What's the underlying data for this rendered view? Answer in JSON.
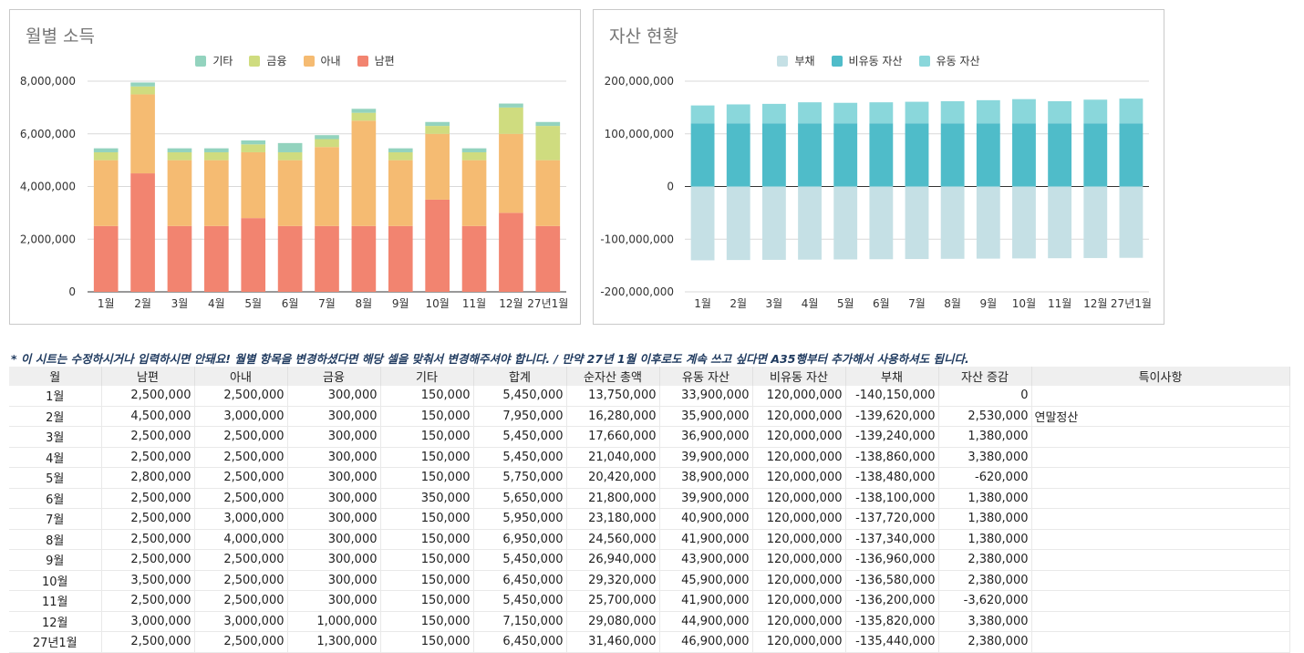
{
  "charts": {
    "income": {
      "title": "월별 소득"
    },
    "assets": {
      "title": "자산 현황"
    }
  },
  "chart_data": [
    {
      "type": "bar",
      "stacked": true,
      "title": "월별 소득",
      "categories": [
        "1월",
        "2월",
        "3월",
        "4월",
        "5월",
        "6월",
        "7월",
        "8월",
        "9월",
        "10월",
        "11월",
        "12월",
        "27년1월"
      ],
      "series": [
        {
          "name": "남편",
          "color": "#f28470",
          "values": [
            2500000,
            4500000,
            2500000,
            2500000,
            2800000,
            2500000,
            2500000,
            2500000,
            2500000,
            3500000,
            2500000,
            3000000,
            2500000
          ]
        },
        {
          "name": "아내",
          "color": "#f5bb72",
          "values": [
            2500000,
            3000000,
            2500000,
            2500000,
            2500000,
            2500000,
            3000000,
            4000000,
            2500000,
            2500000,
            2500000,
            3000000,
            2500000
          ]
        },
        {
          "name": "금융",
          "color": "#cfdc7f",
          "values": [
            300000,
            300000,
            300000,
            300000,
            300000,
            300000,
            300000,
            300000,
            300000,
            300000,
            300000,
            1000000,
            1300000
          ]
        },
        {
          "name": "기타",
          "color": "#93d3be",
          "values": [
            150000,
            150000,
            150000,
            150000,
            150000,
            350000,
            150000,
            150000,
            150000,
            150000,
            150000,
            150000,
            150000
          ]
        }
      ],
      "legend_order": [
        "기타",
        "금융",
        "아내",
        "남편"
      ],
      "yticks": [
        "8,000,000",
        "6,000,000",
        "4,000,000",
        "2,000,000",
        "0"
      ],
      "ylim": [
        0,
        8000000
      ],
      "legend_position": "top"
    },
    {
      "type": "bar",
      "stacked": true,
      "title": "자산 현황",
      "categories": [
        "1월",
        "2월",
        "3월",
        "4월",
        "5월",
        "6월",
        "7월",
        "8월",
        "9월",
        "10월",
        "11월",
        "12월",
        "27년1월"
      ],
      "series": [
        {
          "name": "부채",
          "color": "#c5e0e5",
          "values": [
            -140150000,
            -139620000,
            -139240000,
            -138860000,
            -138480000,
            -138100000,
            -137720000,
            -137340000,
            -136960000,
            -136580000,
            -136200000,
            -135820000,
            -135440000
          ]
        },
        {
          "name": "비유동 자산",
          "color": "#4fbcc9",
          "values": [
            120000000,
            120000000,
            120000000,
            120000000,
            120000000,
            120000000,
            120000000,
            120000000,
            120000000,
            120000000,
            120000000,
            120000000,
            120000000
          ]
        },
        {
          "name": "유동 자산",
          "color": "#8ad7db",
          "values": [
            33900000,
            35900000,
            36900000,
            39900000,
            38900000,
            39900000,
            40900000,
            41900000,
            43900000,
            45900000,
            41900000,
            44900000,
            46900000
          ]
        }
      ],
      "legend_order": [
        "부채",
        "비유동 자산",
        "유동 자산"
      ],
      "yticks": [
        "200,000,000",
        "100,000,000",
        "0",
        "-100,000,000",
        "-200,000,000"
      ],
      "ylim": [
        -200000000,
        200000000
      ],
      "legend_position": "top"
    }
  ],
  "sheet": {
    "note": "* 이 시트는 수정하시거나 입력하시면 안돼요! 월별 항목을 변경하셨다면 해당 셀을 맞춰서 변경해주셔야 합니다. / 만약 27년 1월 이후로도 계속 쓰고 싶다면 A35행부터 추가해서 사용하셔도 됩니다.",
    "headers": [
      "월",
      "남편",
      "아내",
      "금융",
      "기타",
      "합계",
      "순자산 총액",
      "유동 자산",
      "비유동 자산",
      "부채",
      "자산 증감",
      "특이사항"
    ],
    "rows": [
      [
        "1월",
        "2,500,000",
        "2,500,000",
        "300,000",
        "150,000",
        "5,450,000",
        "13,750,000",
        "33,900,000",
        "120,000,000",
        "-140,150,000",
        "0",
        ""
      ],
      [
        "2월",
        "4,500,000",
        "3,000,000",
        "300,000",
        "150,000",
        "7,950,000",
        "16,280,000",
        "35,900,000",
        "120,000,000",
        "-139,620,000",
        "2,530,000",
        "연말정산"
      ],
      [
        "3월",
        "2,500,000",
        "2,500,000",
        "300,000",
        "150,000",
        "5,450,000",
        "17,660,000",
        "36,900,000",
        "120,000,000",
        "-139,240,000",
        "1,380,000",
        ""
      ],
      [
        "4월",
        "2,500,000",
        "2,500,000",
        "300,000",
        "150,000",
        "5,450,000",
        "21,040,000",
        "39,900,000",
        "120,000,000",
        "-138,860,000",
        "3,380,000",
        ""
      ],
      [
        "5월",
        "2,800,000",
        "2,500,000",
        "300,000",
        "150,000",
        "5,750,000",
        "20,420,000",
        "38,900,000",
        "120,000,000",
        "-138,480,000",
        "-620,000",
        ""
      ],
      [
        "6월",
        "2,500,000",
        "2,500,000",
        "300,000",
        "350,000",
        "5,650,000",
        "21,800,000",
        "39,900,000",
        "120,000,000",
        "-138,100,000",
        "1,380,000",
        ""
      ],
      [
        "7월",
        "2,500,000",
        "3,000,000",
        "300,000",
        "150,000",
        "5,950,000",
        "23,180,000",
        "40,900,000",
        "120,000,000",
        "-137,720,000",
        "1,380,000",
        ""
      ],
      [
        "8월",
        "2,500,000",
        "4,000,000",
        "300,000",
        "150,000",
        "6,950,000",
        "24,560,000",
        "41,900,000",
        "120,000,000",
        "-137,340,000",
        "1,380,000",
        ""
      ],
      [
        "9월",
        "2,500,000",
        "2,500,000",
        "300,000",
        "150,000",
        "5,450,000",
        "26,940,000",
        "43,900,000",
        "120,000,000",
        "-136,960,000",
        "2,380,000",
        ""
      ],
      [
        "10월",
        "3,500,000",
        "2,500,000",
        "300,000",
        "150,000",
        "6,450,000",
        "29,320,000",
        "45,900,000",
        "120,000,000",
        "-136,580,000",
        "2,380,000",
        ""
      ],
      [
        "11월",
        "2,500,000",
        "2,500,000",
        "300,000",
        "150,000",
        "5,450,000",
        "25,700,000",
        "41,900,000",
        "120,000,000",
        "-136,200,000",
        "-3,620,000",
        ""
      ],
      [
        "12월",
        "3,000,000",
        "3,000,000",
        "1,000,000",
        "150,000",
        "7,150,000",
        "29,080,000",
        "44,900,000",
        "120,000,000",
        "-135,820,000",
        "3,380,000",
        ""
      ],
      [
        "27년1월",
        "2,500,000",
        "2,500,000",
        "1,300,000",
        "150,000",
        "6,450,000",
        "31,460,000",
        "46,900,000",
        "120,000,000",
        "-135,440,000",
        "2,380,000",
        ""
      ]
    ]
  }
}
